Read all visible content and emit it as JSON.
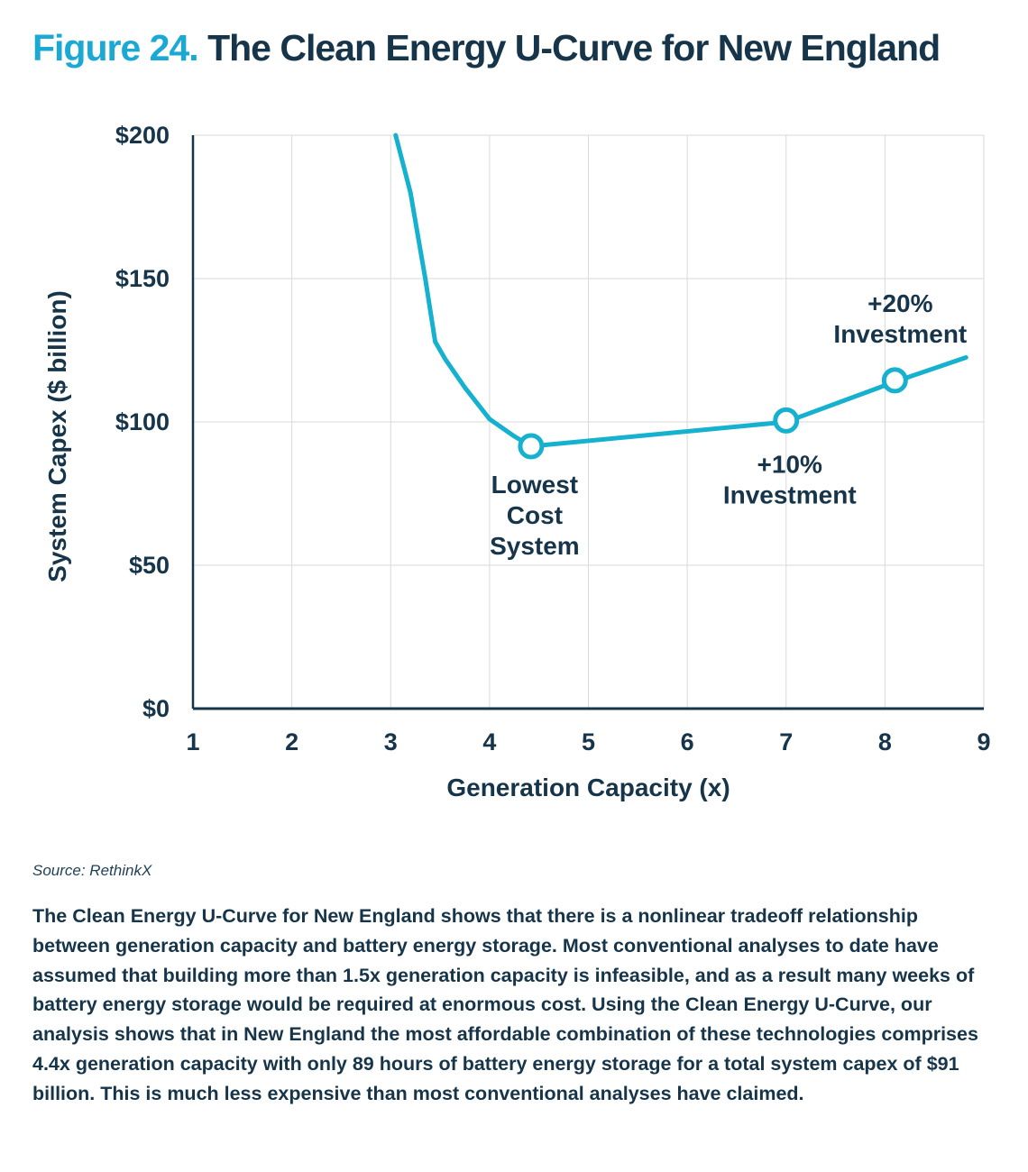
{
  "title": {
    "figure_label": "Figure 24.",
    "text": "The Clean Energy U-Curve for New England"
  },
  "chart_data": {
    "type": "line",
    "title": "The Clean Energy U-Curve for New England",
    "xlabel": "Generation Capacity (x)",
    "ylabel": "System Capex ($ billion)",
    "xlim": [
      1,
      9
    ],
    "ylim": [
      0,
      200
    ],
    "x_ticks": [
      1,
      2,
      3,
      4,
      5,
      6,
      7,
      8,
      9
    ],
    "x_tick_labels": [
      "1",
      "2",
      "3",
      "4",
      "5",
      "6",
      "7",
      "8",
      "9"
    ],
    "y_ticks": [
      0,
      50,
      100,
      150,
      200
    ],
    "y_tick_labels": [
      "$0",
      "$50",
      "$100",
      "$150",
      "$200"
    ],
    "grid": true,
    "series": [
      {
        "name": "System Capex",
        "color": "#16b1cf",
        "x": [
          3.05,
          3.2,
          3.35,
          3.45,
          3.55,
          3.75,
          4.0,
          4.25,
          4.42,
          7.0,
          8.1,
          8.82
        ],
        "y": [
          200,
          180,
          150,
          128,
          122,
          112,
          101,
          95,
          91.5,
          100,
          114,
          122.5
        ]
      }
    ],
    "highlights": [
      {
        "x": 4.42,
        "y": 91.5
      },
      {
        "x": 7.0,
        "y": 100.5
      },
      {
        "x": 8.1,
        "y": 114.5
      }
    ],
    "annotations": [
      {
        "x": 4.42,
        "y": 91.5,
        "lines": [
          "Lowest",
          "Cost",
          "System"
        ]
      },
      {
        "x": 7.0,
        "y": 100.5,
        "lines": [
          "+10%",
          "Investment"
        ]
      },
      {
        "x": 8.1,
        "y": 114.5,
        "lines": [
          "+20%",
          "Investment"
        ]
      }
    ]
  },
  "source": "Source: RethinkX",
  "caption": "The Clean Energy U-Curve for New England shows that there is a nonlinear tradeoff relationship between generation capacity and battery energy storage. Most conventional analyses to date have assumed that building more than 1.5x generation capacity is infeasible, and as a result many weeks of battery energy storage would be required at enormous cost. Using the Clean Energy U-Curve, our analysis shows that in New England the most affordable combination of these technologies comprises 4.4x generation capacity with only 89 hours of battery energy storage for a total system capex of $91 billion. This is much less expensive than most conventional analyses have claimed."
}
